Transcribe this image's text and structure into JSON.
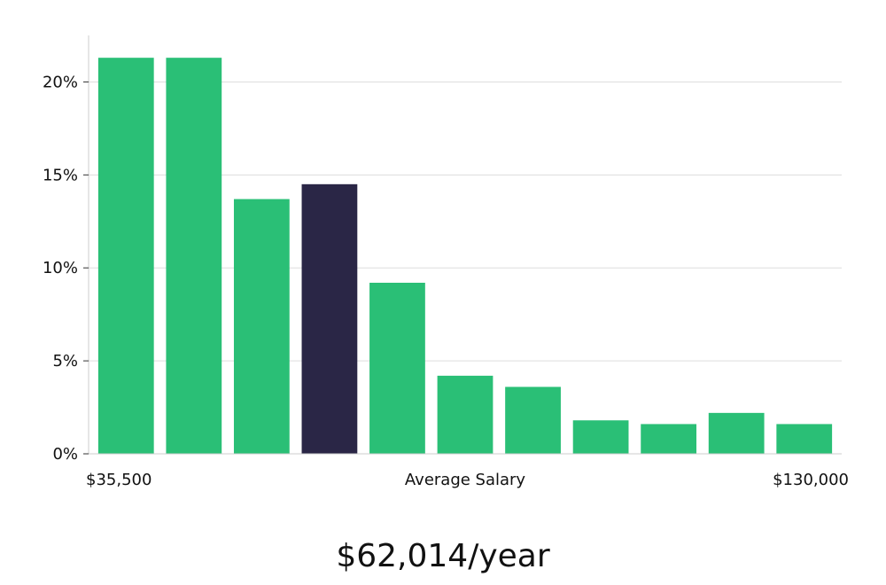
{
  "chart_data": {
    "type": "bar",
    "title": "",
    "xlabel": "Average Salary",
    "x_start_label": "$35,500",
    "x_end_label": "$130,000",
    "ylabel": "",
    "ylim": [
      0,
      22.5
    ],
    "yticks": [
      0,
      5,
      10,
      15,
      20
    ],
    "ytick_suffix": "%",
    "grid": true,
    "values": [
      21.3,
      21.3,
      13.7,
      14.5,
      9.2,
      4.2,
      3.6,
      1.8,
      1.6,
      2.2,
      1.6
    ],
    "highlight_index": 3,
    "colors": {
      "bar": "#2abf76",
      "highlight": "#2a2646",
      "grid": "#dddddd",
      "axis": "#cccccc"
    }
  },
  "headline": "$62,014/year"
}
